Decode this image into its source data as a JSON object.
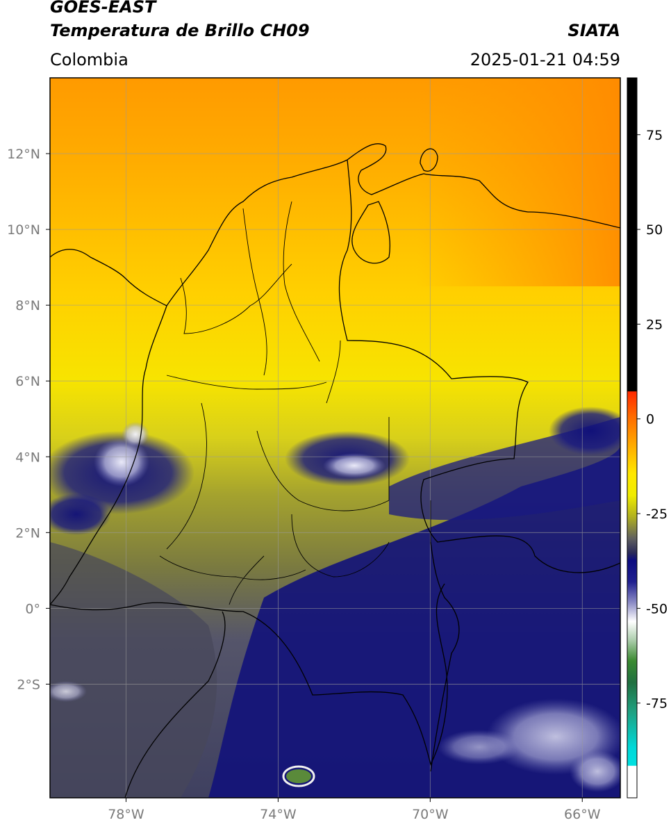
{
  "header": {
    "satellite": "GOES-EAST",
    "product": "Temperatura de Brillo CH09",
    "region": "Colombia",
    "brand": "SIATA",
    "datetime": "2025-01-21 04:59"
  },
  "map": {
    "lon_range": [
      -80,
      -65
    ],
    "lat_range": [
      -5,
      14
    ],
    "lon_ticks": [
      {
        "value": -78,
        "label": "78°W"
      },
      {
        "value": -74,
        "label": "74°W"
      },
      {
        "value": -70,
        "label": "70°W"
      },
      {
        "value": -66,
        "label": "66°W"
      }
    ],
    "lat_ticks": [
      {
        "value": 12,
        "label": "12°N"
      },
      {
        "value": 10,
        "label": "10°N"
      },
      {
        "value": 8,
        "label": "8°N"
      },
      {
        "value": 6,
        "label": "6°N"
      },
      {
        "value": 4,
        "label": "4°N"
      },
      {
        "value": 2,
        "label": "2°N"
      },
      {
        "value": 0,
        "label": "0°"
      },
      {
        "value": -2,
        "label": "2°S"
      }
    ],
    "colors": {
      "warm": "#ff9900",
      "yellow": "#f5e600",
      "olive": "#8f8f30",
      "gray": "#4a4a5a",
      "navy": "#12127a",
      "white": "#f4f4f4"
    }
  },
  "colorbar": {
    "ticks": [
      {
        "value": 75,
        "label": "75"
      },
      {
        "value": 50,
        "label": "50"
      },
      {
        "value": 25,
        "label": "25"
      },
      {
        "value": 0,
        "label": "0"
      },
      {
        "value": -25,
        "label": "-25"
      },
      {
        "value": -50,
        "label": "-50"
      },
      {
        "value": -75,
        "label": "-75"
      }
    ],
    "range": [
      -100,
      90
    ]
  }
}
